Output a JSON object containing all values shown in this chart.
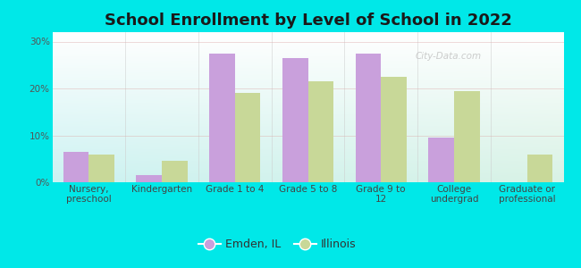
{
  "title": "School Enrollment by Level of School in 2022",
  "categories": [
    "Nursery,\npreschool",
    "Kindergarten",
    "Grade 1 to 4",
    "Grade 5 to 8",
    "Grade 9 to\n12",
    "College\nundergrad",
    "Graduate or\nprofessional"
  ],
  "emden_values": [
    6.5,
    1.5,
    27.5,
    26.5,
    27.5,
    9.5,
    0.0
  ],
  "illinois_values": [
    6.0,
    4.5,
    19.0,
    21.5,
    22.5,
    19.5,
    6.0
  ],
  "emden_color": "#c9a0dc",
  "illinois_color": "#c8d898",
  "background_outer": "#00e8e8",
  "ylim": [
    0,
    32
  ],
  "yticks": [
    0,
    10,
    20,
    30
  ],
  "ytick_labels": [
    "0%",
    "10%",
    "20%",
    "30%"
  ],
  "legend_label_emden": "Emden, IL",
  "legend_label_illinois": "Illinois",
  "bar_width": 0.35,
  "title_fontsize": 13,
  "axis_fontsize": 7.5,
  "legend_fontsize": 9,
  "watermark": "City-Data.com"
}
